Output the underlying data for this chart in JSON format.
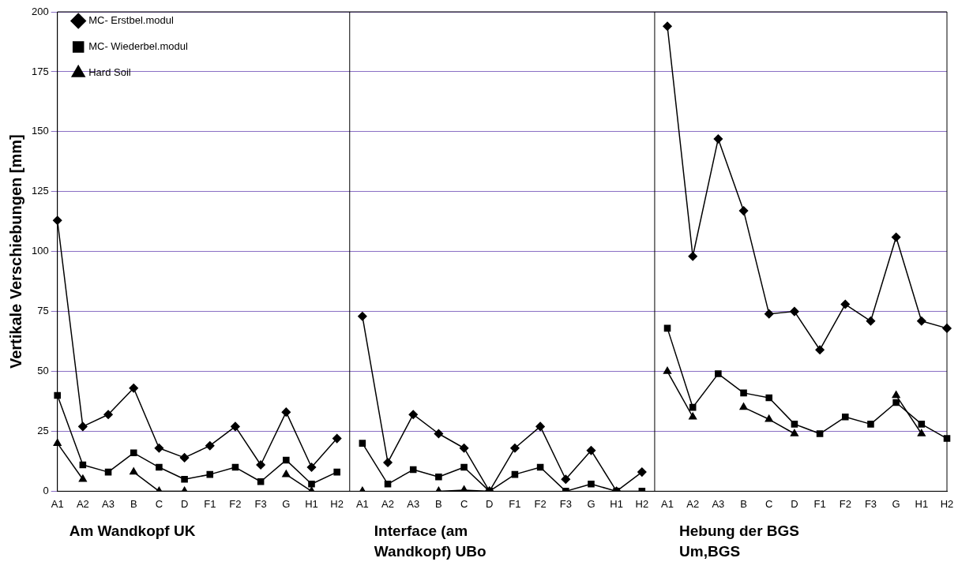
{
  "chart_data": {
    "type": "line",
    "ylabel": "Vertikale Verschiebungen [mm]",
    "categories": [
      "A1",
      "A2",
      "A3",
      "B",
      "C",
      "D",
      "F1",
      "F2",
      "F3",
      "G",
      "H1",
      "H2",
      "A1",
      "A2",
      "A3",
      "B",
      "C",
      "D",
      "F1",
      "F2",
      "F3",
      "G",
      "H1",
      "H2",
      "A1",
      "A2",
      "A3",
      "B",
      "C",
      "D",
      "F1",
      "F2",
      "F3",
      "G",
      "H1",
      "H2"
    ],
    "series": [
      {
        "name": "MC- Erstbel.modul",
        "color": "#000000",
        "marker": "diamond",
        "values": [
          113,
          27,
          32,
          43,
          18,
          14,
          19,
          27,
          11,
          33,
          10,
          22,
          73,
          12,
          32,
          24,
          18,
          0,
          18,
          27,
          5,
          17,
          0,
          8,
          194,
          98,
          147,
          117,
          74,
          75,
          59,
          78,
          71,
          106,
          71,
          68
        ]
      },
      {
        "name": "MC- Wiederbel.modul",
        "color": "#000000",
        "marker": "square",
        "values": [
          40,
          11,
          8,
          16,
          10,
          5,
          7,
          10,
          4,
          13,
          3,
          8,
          20,
          3,
          9,
          6,
          10,
          0,
          7,
          10,
          0,
          3,
          0,
          0,
          68,
          35,
          49,
          41,
          39,
          28,
          24,
          31,
          28,
          37,
          28,
          22
        ]
      },
      {
        "name": "Hard Soil",
        "color": "#000000",
        "marker": "triangle",
        "values": [
          20,
          5,
          null,
          8,
          0,
          0,
          null,
          null,
          null,
          7,
          0,
          null,
          0,
          null,
          null,
          0,
          0.5,
          0,
          null,
          null,
          null,
          null,
          null,
          null,
          50,
          31,
          null,
          35,
          30,
          24,
          null,
          null,
          null,
          40,
          24,
          null
        ]
      }
    ],
    "ylim": [
      0,
      200
    ],
    "yticks": [
      0,
      25,
      50,
      75,
      100,
      125,
      150,
      175,
      200
    ],
    "grid": "y",
    "legend": "top left",
    "line_style": "solid",
    "annotations": [
      "Am Wandkopf UK",
      "Interface (am Wandkopf) UBo",
      "Hebung der BGS Um,BGS"
    ]
  }
}
